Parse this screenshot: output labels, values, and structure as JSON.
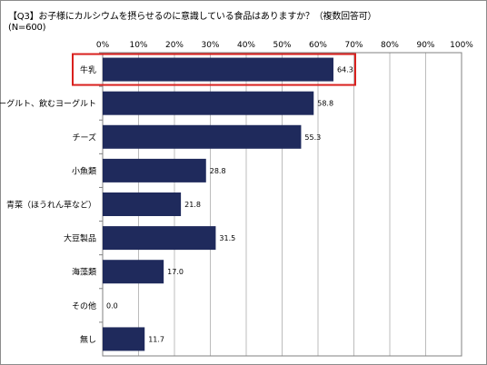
{
  "header": {
    "title": "【Q3】お子様にカルシウムを摂らせるのに意識している食品はありますか？（複数回答可）",
    "sample": "(N=600)"
  },
  "colors": {
    "bar": "#1f2a5c",
    "highlight": "#d9201e",
    "grid": "#bcbcbc",
    "axis": "#808080"
  },
  "chart_data": {
    "type": "bar",
    "orientation": "horizontal",
    "categories": [
      "牛乳",
      "ヨーグルト、飲むヨーグルト",
      "チーズ",
      "小魚類",
      "青菜（ほうれん草など）",
      "大豆製品",
      "海藻類",
      "その他",
      "無し"
    ],
    "values": [
      64.3,
      58.8,
      55.3,
      28.8,
      21.8,
      31.5,
      17.0,
      0.0,
      11.7
    ],
    "value_labels": [
      "64.3",
      "58.8",
      "55.3",
      "28.8",
      "21.8",
      "31.5",
      "17.0",
      "0.0",
      "11.7"
    ],
    "xlim": [
      0,
      100
    ],
    "x_ticks": [
      "0%",
      "10%",
      "20%",
      "30%",
      "40%",
      "50%",
      "60%",
      "70%",
      "80%",
      "90%",
      "100%"
    ],
    "grid": true,
    "highlighted_category": "牛乳"
  }
}
